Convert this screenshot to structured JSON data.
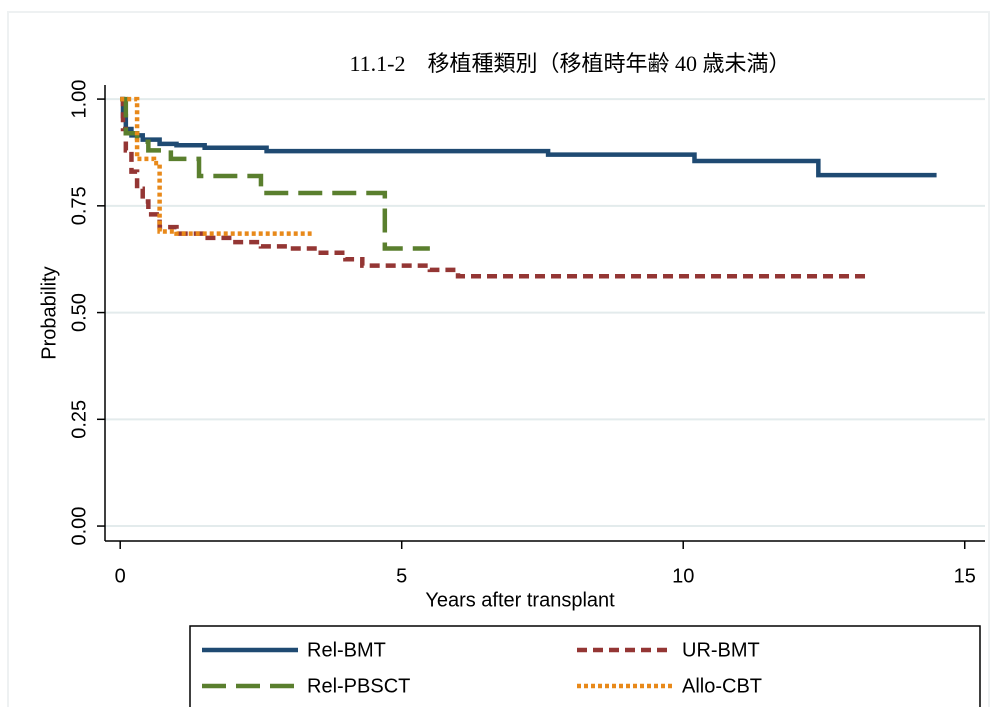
{
  "chart_data": {
    "type": "line",
    "step": "post",
    "title": "11.1-2　移植種類別（移植時年齢 40 歳未満）",
    "x_label": "Years after transplant",
    "y_label": "Probability",
    "xlim": [
      -0.27,
      15.36
    ],
    "ylim": [
      -0.035,
      1.033
    ],
    "xticks": [
      0,
      5,
      10,
      15
    ],
    "yticks": [
      {
        "value": 0,
        "label": "0.00"
      },
      {
        "value": 0.25,
        "label": "0.25"
      },
      {
        "value": 0.5,
        "label": "0.50"
      },
      {
        "value": 0.75,
        "label": "0.75"
      },
      {
        "value": 1,
        "label": "1.00"
      }
    ],
    "grid": true,
    "series": [
      {
        "name": "Rel-BMT",
        "color": "#1f4a72",
        "dash": "solid",
        "x": [
          0,
          0.05,
          0.1,
          0.2,
          0.4,
          0.7,
          1.0,
          1.5,
          2.6,
          7.6,
          10.2,
          12.4,
          14.5
        ],
        "values": [
          1,
          0.96,
          0.93,
          0.915,
          0.905,
          0.895,
          0.892,
          0.886,
          0.878,
          0.87,
          0.855,
          0.822,
          0.822
        ]
      },
      {
        "name": "UR-BMT",
        "color": "#943634",
        "dash": "dashed",
        "x": [
          0,
          0.05,
          0.1,
          0.2,
          0.3,
          0.4,
          0.5,
          0.7,
          1.0,
          1.5,
          2.0,
          2.5,
          3.0,
          3.5,
          4.0,
          4.3,
          5.5,
          6.0,
          13.3
        ],
        "values": [
          1,
          0.93,
          0.88,
          0.83,
          0.79,
          0.76,
          0.73,
          0.7,
          0.685,
          0.675,
          0.665,
          0.655,
          0.65,
          0.64,
          0.625,
          0.61,
          0.6,
          0.585,
          0.585
        ]
      },
      {
        "name": "Rel-PBSCT",
        "color": "#5a7f2e",
        "dash": "longdash",
        "x": [
          0,
          0.1,
          0.3,
          0.5,
          0.9,
          1.4,
          2.5,
          4.7,
          5.5
        ],
        "values": [
          1,
          0.92,
          0.9,
          0.88,
          0.86,
          0.82,
          0.78,
          0.65,
          0.65
        ]
      },
      {
        "name": "Allo-CBT",
        "color": "#e8891a",
        "dash": "dotted",
        "x": [
          0,
          0.3,
          0.6,
          0.7,
          1.0,
          3.4
        ],
        "values": [
          1,
          0.86,
          0.85,
          0.69,
          0.685,
          0.685
        ]
      }
    ]
  }
}
